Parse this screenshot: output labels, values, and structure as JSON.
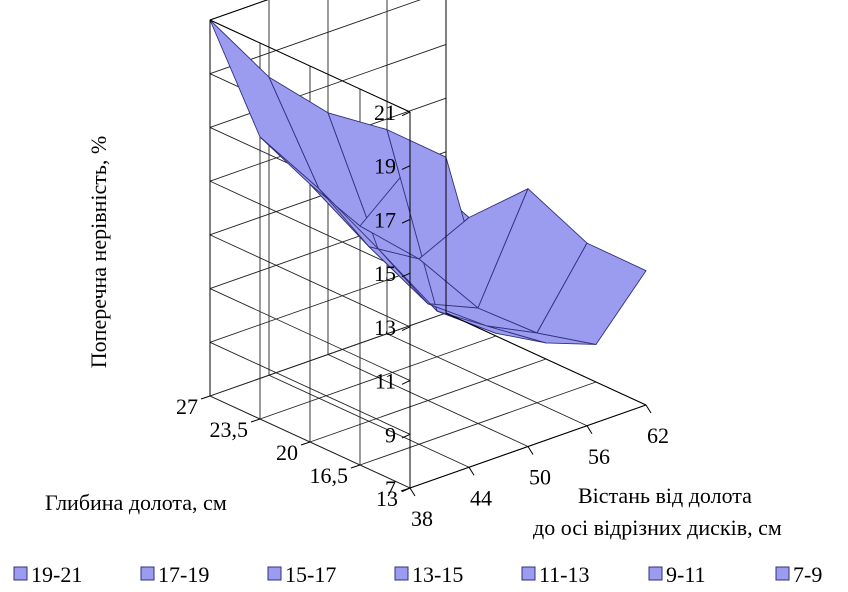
{
  "chart_data": {
    "type": "surface",
    "zlabel": "Поперечна нерівність, %",
    "ylabel": "Глибина долота, см",
    "xlabel_line1": "Вістань від долота",
    "xlabel_line2": "до осі відрізних дисків, см",
    "z_ticks": [
      "7",
      "9",
      "11",
      "13",
      "15",
      "17",
      "19",
      "21"
    ],
    "zlim": [
      7,
      21
    ],
    "y_ticks": [
      "13",
      "16,5",
      "20",
      "23,5",
      "27"
    ],
    "x_ticks": [
      "38",
      "44",
      "50",
      "56",
      "62"
    ],
    "surface_color": "#9b9bf0",
    "legend": [
      {
        "label": "19-21",
        "color": "#9b9bf0"
      },
      {
        "label": "17-19",
        "color": "#9b9bf0"
      },
      {
        "label": "15-17",
        "color": "#9b9bf0"
      },
      {
        "label": "13-15",
        "color": "#9b9bf0"
      },
      {
        "label": "11-13",
        "color": "#9b9bf0"
      },
      {
        "label": "9-11",
        "color": "#9b9bf0"
      },
      {
        "label": "7-9",
        "color": "#9b9bf0"
      }
    ],
    "z_grid": [
      [
        19.0,
        16.3,
        16.6,
        13.8,
        12.0
      ],
      [
        15.9,
        13.9,
        11.3,
        9.6,
        8.4
      ],
      [
        16.6,
        13.5,
        10.6,
        9.0,
        7.6
      ],
      [
        17.5,
        14.8,
        11.8,
        8.7,
        7.1
      ],
      [
        21.0,
        18.1,
        16.0,
        14.6,
        12.8
      ]
    ]
  }
}
